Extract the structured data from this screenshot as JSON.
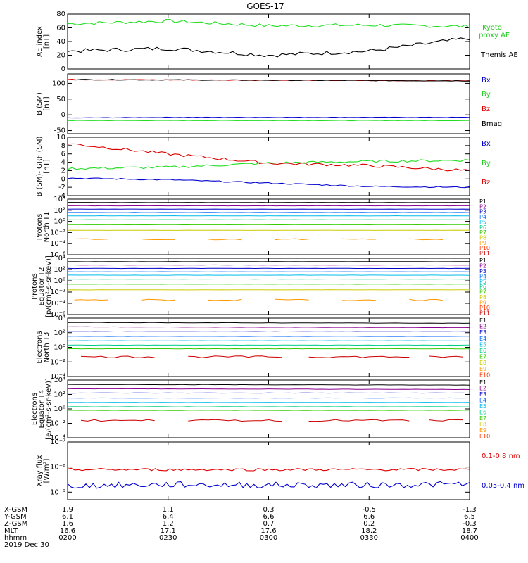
{
  "title": "GOES-17",
  "colors": {
    "black": "#000000",
    "red": "#dd0000",
    "green": "#22dd22",
    "blue": "#0000cc",
    "p": [
      "#000000",
      "#8a0090",
      "#0000cc",
      "#0066ff",
      "#00bbee",
      "#00cc88",
      "#33cc00",
      "#cccc00",
      "#ff9900",
      "#ff3300",
      "#cc0000"
    ]
  },
  "panels": [
    {
      "id": "ae",
      "ylabel": [
        "AE index",
        "[nT]"
      ],
      "yticks": [
        "80",
        "60",
        "40",
        "20",
        "0"
      ],
      "labels": [
        {
          "text": "Kyoto",
          "color": "#22cc22"
        },
        {
          "text": "proxy AE",
          "color": "#22cc22"
        },
        {
          "text": "Themis AE",
          "color": "#000000"
        }
      ]
    },
    {
      "id": "bsm",
      "ylabel": [
        "B (SM)",
        "[nT]"
      ],
      "yticks": [
        "100",
        "50",
        "0",
        "-50"
      ],
      "labels": [
        {
          "text": "Bx",
          "color": "#0000cc"
        },
        {
          "text": "By",
          "color": "#22cc22"
        },
        {
          "text": "Bz",
          "color": "#dd0000"
        },
        {
          "text": "Bmag",
          "color": "#000000"
        }
      ]
    },
    {
      "id": "bigrf",
      "ylabel": [
        "B (SM)-IGRF (SM)",
        "[nT]"
      ],
      "yticks": [
        "10",
        "8",
        "6",
        "4",
        "2",
        "0",
        "-2",
        "-4"
      ],
      "labels": [
        {
          "text": "Bx",
          "color": "#0000cc"
        },
        {
          "text": "By",
          "color": "#22cc22"
        },
        {
          "text": "Bz",
          "color": "#dd0000"
        }
      ]
    },
    {
      "id": "p1",
      "ylabel": [
        "Protons",
        "North T1"
      ],
      "yticks": [
        "10⁴",
        "10²",
        "10⁰",
        "10⁻²",
        "10⁻⁴",
        "10⁻⁶"
      ],
      "labels": [
        "P1",
        "P2",
        "P3",
        "P4",
        "P5",
        "P6",
        "P7",
        "P8",
        "P9",
        "P10",
        "P11"
      ]
    },
    {
      "id": "p2",
      "ylabel": [
        "Protons",
        "Equator T2",
        "[p/(cm²-s-sr-keV)]"
      ],
      "yticks": [
        "10⁴",
        "10²",
        "10⁰",
        "10⁻²",
        "10⁻⁴",
        "10⁻⁶"
      ],
      "labels": [
        "P1",
        "P2",
        "P3",
        "P4",
        "P5",
        "P6",
        "P7",
        "P8",
        "P9",
        "P10",
        "P11"
      ]
    },
    {
      "id": "e1",
      "ylabel": [
        "Electrons",
        "North T3"
      ],
      "yticks": [
        "10⁴",
        "10²",
        "10⁰",
        "10⁻²",
        "10⁻⁴"
      ],
      "labels": [
        "E1",
        "E2",
        "E3",
        "E4",
        "E5",
        "E6",
        "E7",
        "E8",
        "E9",
        "E10"
      ]
    },
    {
      "id": "e2",
      "ylabel": [
        "Electrons",
        "Equator T4",
        "[e/(cm²-s-sr-keV)]"
      ],
      "yticks": [
        "10⁴",
        "10²",
        "10⁰",
        "10⁻²",
        "10⁻⁴"
      ],
      "labels": [
        "E1",
        "E2",
        "E3",
        "E4",
        "E5",
        "E6",
        "E7",
        "E8",
        "E9",
        "E10"
      ]
    },
    {
      "id": "xray",
      "ylabel": [
        "Xray flux",
        "[W/m²]"
      ],
      "yticks": [
        "10⁻⁷",
        "10⁻⁸",
        "10⁻⁹"
      ],
      "labels": [
        {
          "text": "0.1-0.8 nm",
          "color": "#dd0000"
        },
        {
          "text": "0.05-0.4 nm",
          "color": "#0000cc"
        }
      ]
    }
  ],
  "footer": {
    "rows": [
      {
        "label": "X-GSM",
        "values": [
          "1.9",
          "1.1",
          "0.3",
          "-0.5",
          "-1.3"
        ]
      },
      {
        "label": "Y-GSM",
        "values": [
          "6.1",
          "6.4",
          "6.6",
          "6.6",
          "6.5"
        ]
      },
      {
        "label": "Z-GSM",
        "values": [
          "1.6",
          "1.2",
          "0.7",
          "0.2",
          "-0.3"
        ]
      },
      {
        "label": "MLT",
        "values": [
          "16.6",
          "17.1",
          "17.6",
          "18.2",
          "18.7"
        ]
      },
      {
        "label": "hhmm",
        "values": [
          "0200",
          "0230",
          "0300",
          "0330",
          "0400"
        ]
      }
    ],
    "date": "2019 Dec 30"
  },
  "chart_data": [
    {
      "type": "line",
      "panel": "ae",
      "x": [
        "0200",
        "0230",
        "0300",
        "0330",
        "0400"
      ],
      "ylim": [
        0,
        80
      ],
      "series": [
        {
          "name": "Kyoto proxy AE",
          "values": [
            66,
            70,
            63,
            64,
            62
          ]
        },
        {
          "name": "Themis AE",
          "values": [
            26,
            30,
            20,
            26,
            45
          ]
        }
      ]
    },
    {
      "type": "line",
      "panel": "bsm",
      "x": [
        "0200",
        "0230",
        "0300",
        "0330",
        "0400"
      ],
      "ylim": [
        -60,
        130
      ],
      "series": [
        {
          "name": "Bx",
          "values": [
            -10,
            -8,
            -8,
            -8,
            -8
          ]
        },
        {
          "name": "By",
          "values": [
            -18,
            -18,
            -18,
            -18,
            -18
          ]
        },
        {
          "name": "Bz",
          "values": [
            112,
            111,
            110,
            109,
            108
          ]
        },
        {
          "name": "Bmag",
          "values": [
            112,
            111,
            110,
            109,
            108
          ]
        }
      ]
    },
    {
      "type": "line",
      "panel": "bigrf",
      "x": [
        "0200",
        "0230",
        "0300",
        "0330",
        "0400"
      ],
      "ylim": [
        -4,
        10
      ],
      "series": [
        {
          "name": "Bx",
          "values": [
            0.2,
            -0.2,
            -1.0,
            -1.8,
            -2.0
          ]
        },
        {
          "name": "By",
          "values": [
            2.5,
            2.8,
            3.8,
            4.2,
            4.5
          ]
        },
        {
          "name": "Bz",
          "values": [
            8.5,
            6.0,
            3.8,
            3.2,
            2.0
          ]
        }
      ]
    },
    {
      "type": "line",
      "panel": "p1",
      "x": [
        "0200",
        "0400"
      ],
      "yscale": "log",
      "ylim": [
        -6,
        4
      ],
      "series": [
        {
          "name": "P1",
          "values": [
            3.4,
            3.4
          ]
        },
        {
          "name": "P2",
          "values": [
            2.8,
            2.8
          ]
        },
        {
          "name": "P3",
          "values": [
            2.2,
            2.2
          ]
        },
        {
          "name": "P4",
          "values": [
            1.6,
            1.6
          ]
        },
        {
          "name": "P5",
          "values": [
            1.0,
            1.0
          ]
        },
        {
          "name": "P6",
          "values": [
            0.3,
            0.3
          ]
        },
        {
          "name": "P7",
          "values": [
            -0.6,
            -0.6
          ]
        },
        {
          "name": "P8",
          "values": [
            -1.6,
            -1.6
          ]
        },
        {
          "name": "P9",
          "values": [
            -3.2,
            -3.2
          ]
        }
      ]
    },
    {
      "type": "line",
      "panel": "p2",
      "x": [
        "0200",
        "0400"
      ],
      "yscale": "log",
      "ylim": [
        -6,
        4
      ],
      "series": [
        {
          "name": "P1",
          "values": [
            3.4,
            3.4
          ]
        },
        {
          "name": "P2",
          "values": [
            2.8,
            2.8
          ]
        },
        {
          "name": "P3",
          "values": [
            2.2,
            2.2
          ]
        },
        {
          "name": "P4",
          "values": [
            1.6,
            1.6
          ]
        },
        {
          "name": "P5",
          "values": [
            1.0,
            1.0
          ]
        },
        {
          "name": "P6",
          "values": [
            0.3,
            0.3
          ]
        },
        {
          "name": "P7",
          "values": [
            -0.6,
            -0.6
          ]
        },
        {
          "name": "P8",
          "values": [
            -1.6,
            -1.6
          ]
        },
        {
          "name": "P9",
          "values": [
            -3.4,
            -3.4
          ]
        }
      ]
    },
    {
      "type": "line",
      "panel": "e1",
      "x": [
        "0200",
        "0400"
      ],
      "yscale": "log",
      "ylim": [
        -4,
        4
      ],
      "series": [
        {
          "name": "E1",
          "values": [
            3.4,
            3.3
          ]
        },
        {
          "name": "E2",
          "values": [
            2.8,
            2.7
          ]
        },
        {
          "name": "E3",
          "values": [
            2.2,
            2.2
          ]
        },
        {
          "name": "E4",
          "values": [
            1.5,
            1.5
          ]
        },
        {
          "name": "E5",
          "values": [
            0.9,
            0.9
          ]
        },
        {
          "name": "E6",
          "values": [
            0.3,
            0.3
          ]
        },
        {
          "name": "E7",
          "values": [
            -0.2,
            -0.2
          ]
        },
        {
          "name": "E8",
          "values": [
            -1.3,
            -1.3
          ]
        }
      ]
    },
    {
      "type": "line",
      "panel": "e2",
      "x": [
        "0200",
        "0400"
      ],
      "yscale": "log",
      "ylim": [
        -4,
        4
      ],
      "series": [
        {
          "name": "E1",
          "values": [
            3.4,
            3.3
          ]
        },
        {
          "name": "E2",
          "values": [
            2.8,
            2.7
          ]
        },
        {
          "name": "E3",
          "values": [
            2.2,
            2.2
          ]
        },
        {
          "name": "E4",
          "values": [
            1.5,
            1.5
          ]
        },
        {
          "name": "E5",
          "values": [
            0.9,
            0.9
          ]
        },
        {
          "name": "E6",
          "values": [
            0.3,
            0.3
          ]
        },
        {
          "name": "E7",
          "values": [
            -0.2,
            -0.2
          ]
        },
        {
          "name": "E8",
          "values": [
            -1.6,
            -1.6
          ]
        }
      ]
    },
    {
      "type": "line",
      "panel": "xray",
      "x": [
        "0200",
        "0230",
        "0300",
        "0330",
        "0400"
      ],
      "yscale": "log",
      "ylim": [
        -9.3,
        -7
      ],
      "series": [
        {
          "name": "0.1-0.8 nm",
          "values": [
            -8.1,
            -8.1,
            -8.1,
            -8.1,
            -8.1
          ]
        },
        {
          "name": "0.05-0.4 nm",
          "values": [
            -8.75,
            -8.7,
            -8.72,
            -8.72,
            -8.68
          ]
        }
      ]
    }
  ]
}
